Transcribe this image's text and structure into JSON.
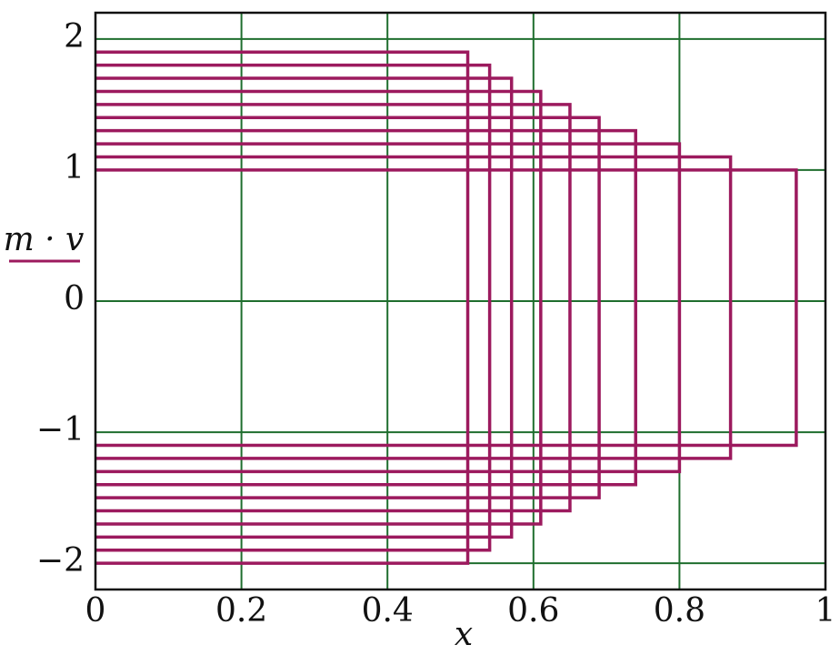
{
  "chart_data": {
    "type": "line",
    "x_label": "x",
    "y_label": "m · v",
    "xlim": [
      0,
      1
    ],
    "ylim": [
      -2.2,
      2.2
    ],
    "xticks": [
      0,
      0.2,
      0.4,
      0.6,
      0.8,
      1
    ],
    "yticks": [
      {
        "value": -2,
        "label": "−2"
      },
      {
        "value": -1,
        "label": "−1"
      },
      0,
      1,
      2
    ],
    "grid": true,
    "grid_color": "#1f6e2e",
    "color": "#9c1a5e",
    "series": [
      {
        "x": [
          0,
          0.51,
          0.51,
          0
        ],
        "y": [
          1.9,
          1.9,
          -2.0,
          -2.0
        ]
      },
      {
        "x": [
          0,
          0.54,
          0.54,
          0
        ],
        "y": [
          1.8,
          1.8,
          -1.9,
          -1.9
        ]
      },
      {
        "x": [
          0,
          0.57,
          0.57,
          0
        ],
        "y": [
          1.7,
          1.7,
          -1.8,
          -1.8
        ]
      },
      {
        "x": [
          0,
          0.61,
          0.61,
          0
        ],
        "y": [
          1.6,
          1.6,
          -1.7,
          -1.7
        ]
      },
      {
        "x": [
          0,
          0.65,
          0.65,
          0
        ],
        "y": [
          1.5,
          1.5,
          -1.6,
          -1.6
        ]
      },
      {
        "x": [
          0,
          0.69,
          0.69,
          0
        ],
        "y": [
          1.4,
          1.4,
          -1.5,
          -1.5
        ]
      },
      {
        "x": [
          0,
          0.74,
          0.74,
          0
        ],
        "y": [
          1.3,
          1.3,
          -1.4,
          -1.4
        ]
      },
      {
        "x": [
          0,
          0.8,
          0.8,
          0
        ],
        "y": [
          1.2,
          1.2,
          -1.3,
          -1.3
        ]
      },
      {
        "x": [
          0,
          0.87,
          0.87,
          0
        ],
        "y": [
          1.1,
          1.1,
          -1.2,
          -1.2
        ]
      },
      {
        "x": [
          0,
          0.96,
          0.96,
          0
        ],
        "y": [
          1.0,
          1.0,
          -1.1,
          -1.1
        ]
      }
    ]
  }
}
